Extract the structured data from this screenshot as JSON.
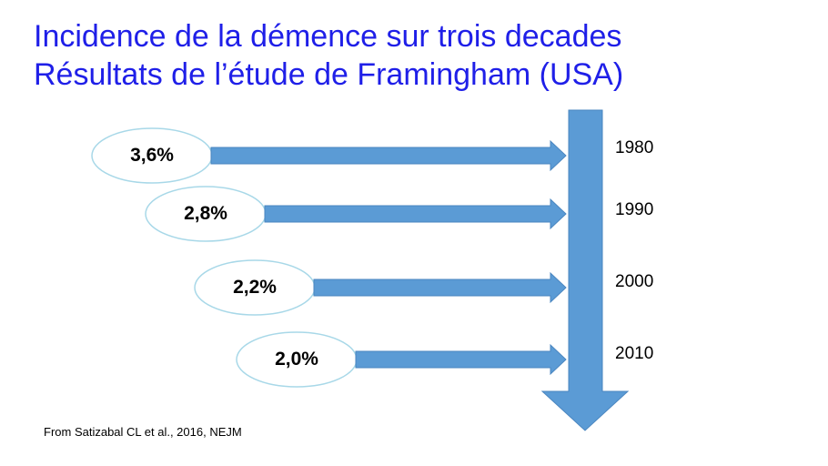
{
  "title_line1": "Incidence de la démence sur trois decades",
  "title_line2": "Résultats de l’étude de Framingham (USA)",
  "rows": [
    {
      "value": "3,6%",
      "year": "1980"
    },
    {
      "value": "2,8%",
      "year": "1990"
    },
    {
      "value": "2,2%",
      "year": "2000"
    },
    {
      "value": "2,0%",
      "year": "2010"
    }
  ],
  "source": "From Satizabal CL et al., 2016, NEJM",
  "colors": {
    "title": "#1f1fe8",
    "arrow": "#5b9bd5",
    "oval_border": "#a8d8e8"
  }
}
